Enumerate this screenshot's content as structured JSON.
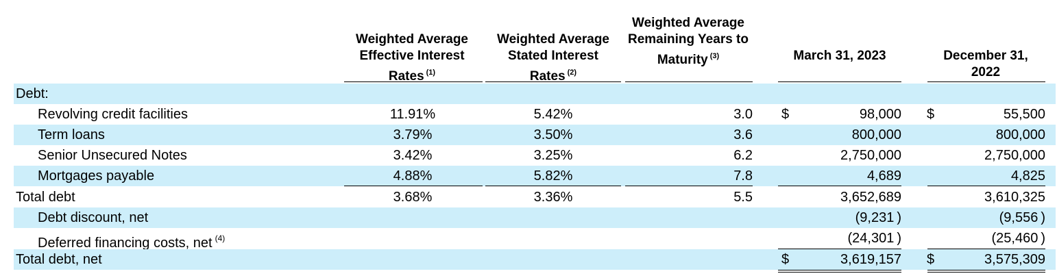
{
  "headers": {
    "effective_rate": {
      "text": "Weighted Average Effective Interest Rates",
      "note": "(1)"
    },
    "stated_rate": {
      "text": "Weighted Average Stated Interest Rates",
      "note": "(2)"
    },
    "remaining_years": {
      "text": "Weighted Average Remaining Years to Maturity",
      "note": "(3)"
    },
    "march_2023": "March 31, 2023",
    "dec_2022": "December 31, 2022"
  },
  "rows": [
    {
      "label": "Debt:",
      "indent": false,
      "shade": true,
      "effective": "",
      "stated": "",
      "years": "",
      "cur1": "",
      "mar": "",
      "cur2": "",
      "dec": ""
    },
    {
      "label": "Revolving credit facilities",
      "indent": true,
      "shade": false,
      "effective": "11.91%",
      "stated": "5.42%",
      "years": "3.0",
      "cur1": "$",
      "mar": "98,000",
      "cur2": "$",
      "dec": "55,500"
    },
    {
      "label": "Term loans",
      "indent": true,
      "shade": true,
      "effective": "3.79%",
      "stated": "3.50%",
      "years": "3.6",
      "cur1": "",
      "mar": "800,000",
      "cur2": "",
      "dec": "800,000"
    },
    {
      "label": "Senior Unsecured Notes",
      "indent": true,
      "shade": false,
      "effective": "3.42%",
      "stated": "3.25%",
      "years": "6.2",
      "cur1": "",
      "mar": "2,750,000",
      "cur2": "",
      "dec": "2,750,000"
    },
    {
      "label": "Mortgages payable",
      "indent": true,
      "shade": true,
      "effective": "4.88%",
      "stated": "5.82%",
      "years": "7.8",
      "cur1": "",
      "mar": "4,689",
      "cur2": "",
      "dec": "4,825"
    },
    {
      "label": "Total debt",
      "indent": false,
      "shade": false,
      "effective": "3.68%",
      "stated": "3.36%",
      "years": "5.5",
      "cur1": "",
      "mar": "3,652,689",
      "cur2": "",
      "dec": "3,610,325"
    },
    {
      "label": "Debt discount, net",
      "indent": true,
      "shade": true,
      "effective": "",
      "stated": "",
      "years": "",
      "cur1": "",
      "mar": "(9,231 )",
      "cur2": "",
      "dec": "(9,556 )"
    },
    {
      "label": "Deferred financing costs, net",
      "note": "(4)",
      "indent": true,
      "shade": false,
      "effective": "",
      "stated": "",
      "years": "",
      "cur1": "",
      "mar": "(24,301 )",
      "cur2": "",
      "dec": "(25,460 )"
    },
    {
      "label": "Total debt, net",
      "indent": false,
      "shade": true,
      "effective": "",
      "stated": "",
      "years": "",
      "cur1": "$",
      "mar": "3,619,157",
      "cur2": "$",
      "dec": "3,575,309"
    }
  ]
}
